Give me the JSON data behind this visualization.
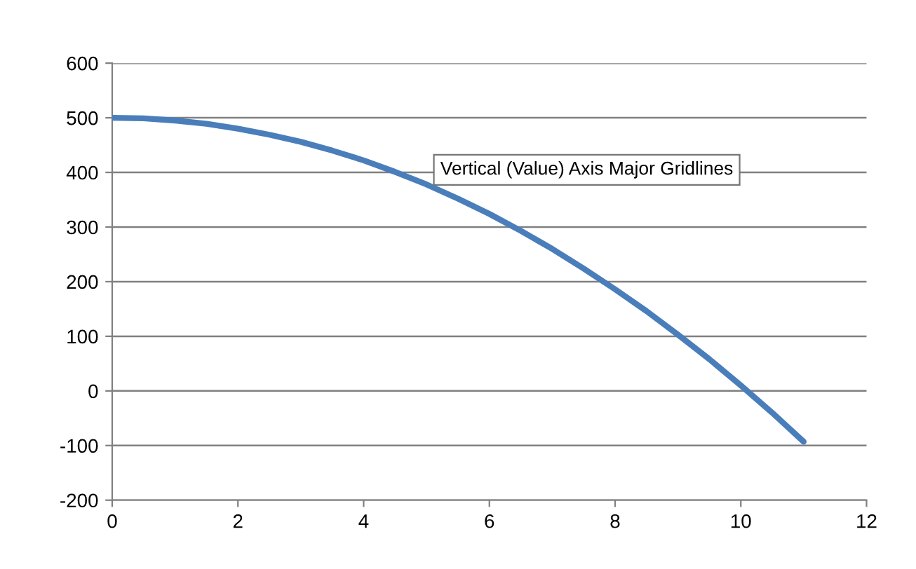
{
  "chart_data": {
    "type": "line",
    "x": [
      0,
      0.5,
      1,
      1.5,
      2,
      2.5,
      3,
      3.5,
      4,
      4.5,
      5,
      5.5,
      6,
      6.5,
      7,
      7.5,
      8,
      8.5,
      9,
      9.5,
      10,
      10.5,
      11
    ],
    "series": [
      {
        "color": "#4a7ebb",
        "values": [
          500,
          499,
          495,
          489,
          480,
          469,
          456,
          440,
          422,
          401,
          378,
          352,
          324,
          293,
          260,
          224,
          186,
          146,
          103,
          58,
          10,
          -40,
          -93
        ]
      }
    ],
    "xlim": [
      0,
      12
    ],
    "xticks": [
      0,
      2,
      4,
      6,
      8,
      10,
      12
    ],
    "ylim": [
      -200,
      600
    ],
    "yticks": [
      -200,
      -100,
      0,
      100,
      200,
      300,
      400,
      500,
      600
    ],
    "grid": "y",
    "legend": false,
    "marker": "none",
    "line_style": "solid",
    "annotations": [
      "Vertical (Value) Axis Major Gridlines"
    ]
  }
}
